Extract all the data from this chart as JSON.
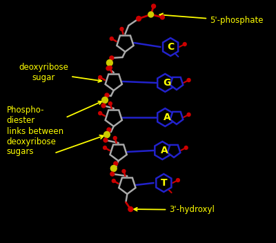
{
  "background_color": "#000000",
  "fig_width": 4.0,
  "fig_height": 3.52,
  "dpi": 100,
  "labels": {
    "phosphate": "5'-phosphate",
    "deoxyribose": "deoxyribose\nsugar",
    "phosphodiester": "Phospho-\ndiester\nlinks between\ndeoxyribose\nsugars",
    "hydroxyl": "3'-hydroxyl"
  },
  "bases": [
    "C",
    "G",
    "A",
    "A",
    "T"
  ],
  "annotation_color": "#ffff00",
  "backbone_color": "#aaaaaa",
  "oxygen_color": "#cc0000",
  "phosphate_color": "#cccc00",
  "base_ring_color": "#2222cc",
  "label_fontsize": 8.5,
  "base_fontsize": 10,
  "arrow_color": "#ffff00"
}
